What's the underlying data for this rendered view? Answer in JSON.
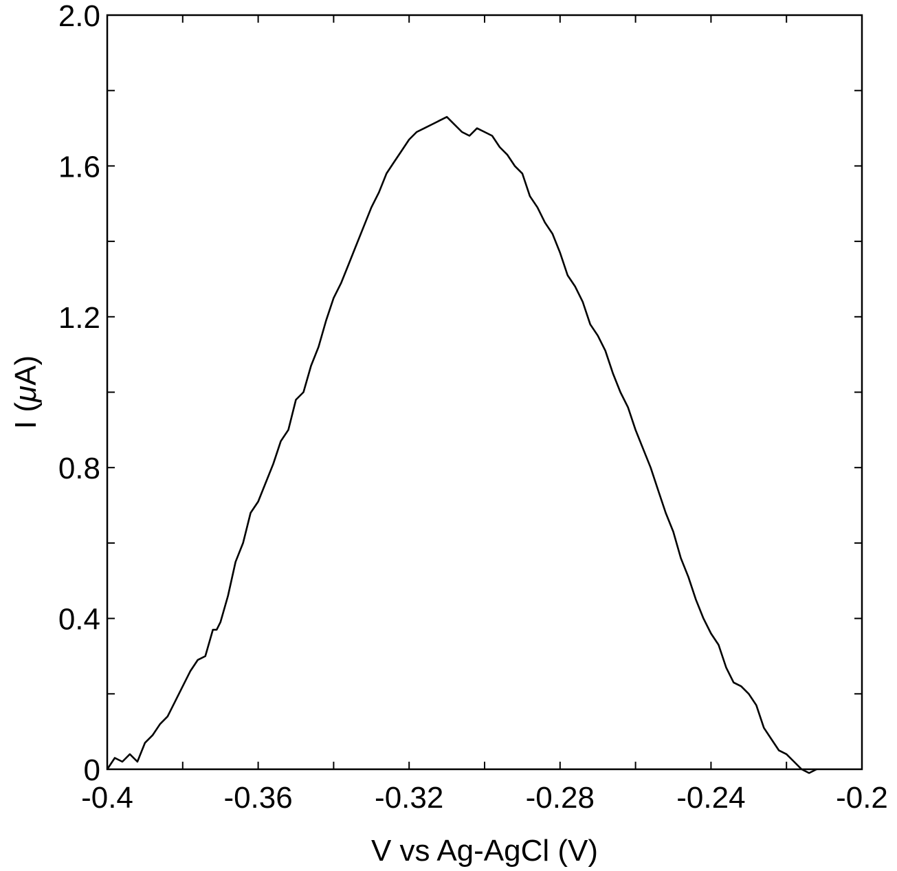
{
  "chart_data": {
    "type": "line",
    "xlabel": "V vs Ag-AgCl (V)",
    "ylabel_prefix": "I (",
    "ylabel_mu": "μ",
    "ylabel_suffix": "A)",
    "xlim": [
      -0.4,
      -0.2
    ],
    "ylim": [
      0,
      2.0
    ],
    "x_ticks": [
      -0.4,
      -0.36,
      -0.32,
      -0.28,
      -0.24,
      -0.2
    ],
    "x_tick_labels": [
      "-0.4",
      "-0.36",
      "-0.32",
      "-0.28",
      "-0.24",
      "-0.2"
    ],
    "x_minor_ticks": [
      -0.38,
      -0.34,
      -0.3,
      -0.26,
      -0.22
    ],
    "y_ticks": [
      0,
      0.4,
      0.8,
      1.2,
      1.6,
      2.0
    ],
    "y_tick_labels": [
      "0",
      "0.4",
      "0.8",
      "1.2",
      "1.6",
      "2.0"
    ],
    "y_minor_ticks": [
      0.2,
      0.6,
      1.0,
      1.4,
      1.8
    ],
    "grid": false,
    "line_color": "#000000",
    "series": [
      {
        "x": [
          -0.4,
          -0.398,
          -0.396,
          -0.394,
          -0.392,
          -0.39,
          -0.388,
          -0.386,
          -0.384,
          -0.382,
          -0.38,
          -0.378,
          -0.376,
          -0.374,
          -0.372,
          -0.371,
          -0.37,
          -0.368,
          -0.366,
          -0.364,
          -0.362,
          -0.36,
          -0.358,
          -0.356,
          -0.354,
          -0.352,
          -0.35,
          -0.348,
          -0.346,
          -0.344,
          -0.342,
          -0.34,
          -0.338,
          -0.336,
          -0.334,
          -0.332,
          -0.33,
          -0.328,
          -0.326,
          -0.324,
          -0.322,
          -0.32,
          -0.318,
          -0.316,
          -0.314,
          -0.312,
          -0.31,
          -0.308,
          -0.306,
          -0.304,
          -0.302,
          -0.3,
          -0.298,
          -0.296,
          -0.294,
          -0.292,
          -0.29,
          -0.288,
          -0.286,
          -0.284,
          -0.282,
          -0.28,
          -0.278,
          -0.276,
          -0.274,
          -0.272,
          -0.27,
          -0.268,
          -0.266,
          -0.264,
          -0.262,
          -0.26,
          -0.258,
          -0.256,
          -0.254,
          -0.252,
          -0.25,
          -0.248,
          -0.246,
          -0.244,
          -0.242,
          -0.24,
          -0.238,
          -0.236,
          -0.234,
          -0.232,
          -0.23,
          -0.228,
          -0.226,
          -0.224,
          -0.222,
          -0.22,
          -0.218,
          -0.216,
          -0.214,
          -0.212
        ],
        "y": [
          0.0,
          0.03,
          0.02,
          0.04,
          0.02,
          0.07,
          0.09,
          0.12,
          0.14,
          0.18,
          0.22,
          0.26,
          0.29,
          0.3,
          0.37,
          0.37,
          0.39,
          0.46,
          0.55,
          0.6,
          0.68,
          0.71,
          0.76,
          0.81,
          0.87,
          0.9,
          0.98,
          1.0,
          1.07,
          1.12,
          1.19,
          1.25,
          1.29,
          1.34,
          1.39,
          1.44,
          1.49,
          1.53,
          1.58,
          1.61,
          1.64,
          1.67,
          1.69,
          1.7,
          1.71,
          1.72,
          1.73,
          1.71,
          1.69,
          1.68,
          1.7,
          1.69,
          1.68,
          1.65,
          1.63,
          1.6,
          1.58,
          1.52,
          1.49,
          1.45,
          1.42,
          1.37,
          1.31,
          1.28,
          1.24,
          1.18,
          1.15,
          1.11,
          1.05,
          1.0,
          0.96,
          0.9,
          0.85,
          0.8,
          0.74,
          0.68,
          0.63,
          0.56,
          0.51,
          0.45,
          0.4,
          0.36,
          0.33,
          0.27,
          0.23,
          0.22,
          0.2,
          0.17,
          0.11,
          0.08,
          0.05,
          0.04,
          0.02,
          0.0,
          -0.01,
          0.0
        ]
      }
    ]
  }
}
